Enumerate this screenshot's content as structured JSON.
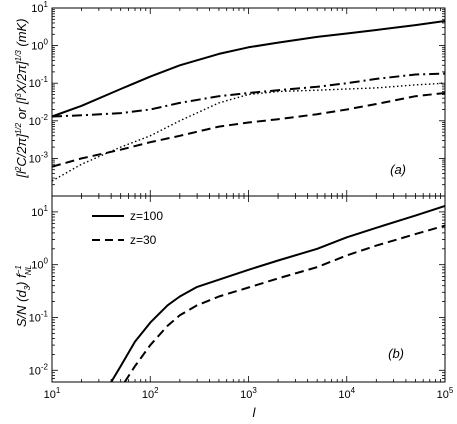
{
  "chart_data": [
    {
      "panel": "a",
      "type": "line",
      "panel_label": "(a)",
      "xlabel": "l",
      "ylabel": "[l²C/2π]¹ᐟ² or [l³X/2π]¹ᐟ³ (mK)",
      "ylabel_parts": {
        "p1": "[l",
        "p1_sup": "2",
        "p2": "C/2π]",
        "p2_sup": "1/2",
        "p3": " or [l",
        "p3_sup": "3",
        "p4": "X/2π]",
        "p4_sup": "1/3",
        "p5": " (mK)"
      },
      "x_scale": "log",
      "y_scale": "log",
      "xlim": [
        10,
        100000
      ],
      "ylim": [
        0.0001,
        10
      ],
      "x_ticks": [
        {
          "base": "10",
          "exp": "1"
        },
        {
          "base": "10",
          "exp": "2"
        },
        {
          "base": "10",
          "exp": "3"
        },
        {
          "base": "10",
          "exp": "4"
        },
        {
          "base": "10",
          "exp": "5"
        }
      ],
      "y_ticks": [
        {
          "base": "10",
          "exp": "-3",
          "value": 0.001
        },
        {
          "base": "10",
          "exp": "-2",
          "value": 0.01
        },
        {
          "base": "10",
          "exp": "-1",
          "value": 0.1
        },
        {
          "base": "10",
          "exp": "0",
          "value": 1
        },
        {
          "base": "10",
          "exp": "1",
          "value": 10
        }
      ],
      "series": [
        {
          "style": "solid",
          "x": [
            10,
            20,
            50,
            100,
            200,
            500,
            1000,
            2000,
            5000,
            10000,
            20000,
            50000,
            100000
          ],
          "y": [
            0.013,
            0.025,
            0.07,
            0.15,
            0.3,
            0.6,
            0.9,
            1.2,
            1.7,
            2.1,
            2.6,
            3.5,
            4.5
          ]
        },
        {
          "style": "dashdot",
          "x": [
            10,
            20,
            50,
            100,
            200,
            500,
            1000,
            2000,
            5000,
            10000,
            20000,
            50000,
            100000
          ],
          "y": [
            0.013,
            0.014,
            0.016,
            0.02,
            0.03,
            0.045,
            0.055,
            0.065,
            0.08,
            0.1,
            0.13,
            0.17,
            0.18
          ]
        },
        {
          "style": "dotted",
          "x": [
            10,
            20,
            50,
            100,
            200,
            500,
            1000,
            2000,
            5000,
            10000,
            20000,
            50000,
            100000
          ],
          "y": [
            0.00025,
            0.0007,
            0.002,
            0.004,
            0.01,
            0.03,
            0.05,
            0.06,
            0.065,
            0.07,
            0.075,
            0.09,
            0.1
          ]
        },
        {
          "style": "dashed",
          "x": [
            10,
            20,
            50,
            100,
            200,
            500,
            1000,
            2000,
            5000,
            10000,
            20000,
            50000,
            100000
          ],
          "y": [
            0.0006,
            0.001,
            0.0017,
            0.0027,
            0.004,
            0.007,
            0.009,
            0.011,
            0.015,
            0.02,
            0.028,
            0.045,
            0.055
          ]
        }
      ]
    },
    {
      "panel": "b",
      "type": "line",
      "panel_label": "(b)",
      "xlabel": "l",
      "ylabel": "S/N (d₃) f⁻¹ NL",
      "ylabel_parts": {
        "p1": "S/N (d",
        "p1_sub": "3",
        "p2": ") f",
        "p2_sup": "−1",
        "p2_sub": "NL"
      },
      "x_scale": "log",
      "y_scale": "log",
      "xlim": [
        10,
        100000
      ],
      "ylim": [
        0.006,
        20
      ],
      "x_ticks": [
        {
          "base": "10",
          "exp": "1"
        },
        {
          "base": "10",
          "exp": "2"
        },
        {
          "base": "10",
          "exp": "3"
        },
        {
          "base": "10",
          "exp": "4"
        },
        {
          "base": "10",
          "exp": "5"
        }
      ],
      "y_ticks": [
        {
          "base": "10",
          "exp": "-2",
          "value": 0.01
        },
        {
          "base": "10",
          "exp": "-1",
          "value": 0.1
        },
        {
          "base": "10",
          "exp": "0",
          "value": 1
        },
        {
          "base": "10",
          "exp": "1",
          "value": 10
        }
      ],
      "legend": "top-left",
      "series": [
        {
          "name": "z=100",
          "style": "solid",
          "x": [
            40,
            50,
            70,
            100,
            150,
            200,
            300,
            500,
            1000,
            2000,
            5000,
            10000,
            20000,
            50000,
            100000
          ],
          "y": [
            0.006,
            0.012,
            0.035,
            0.08,
            0.17,
            0.25,
            0.38,
            0.52,
            0.8,
            1.2,
            2.0,
            3.3,
            5.0,
            8.5,
            13
          ]
        },
        {
          "name": "z=30",
          "style": "dashed",
          "x": [
            55,
            70,
            100,
            150,
            200,
            300,
            500,
            1000,
            2000,
            5000,
            10000,
            20000,
            50000,
            100000
          ],
          "y": [
            0.006,
            0.012,
            0.03,
            0.07,
            0.11,
            0.17,
            0.25,
            0.37,
            0.55,
            0.9,
            1.5,
            2.3,
            3.8,
            5.5
          ]
        }
      ]
    }
  ]
}
